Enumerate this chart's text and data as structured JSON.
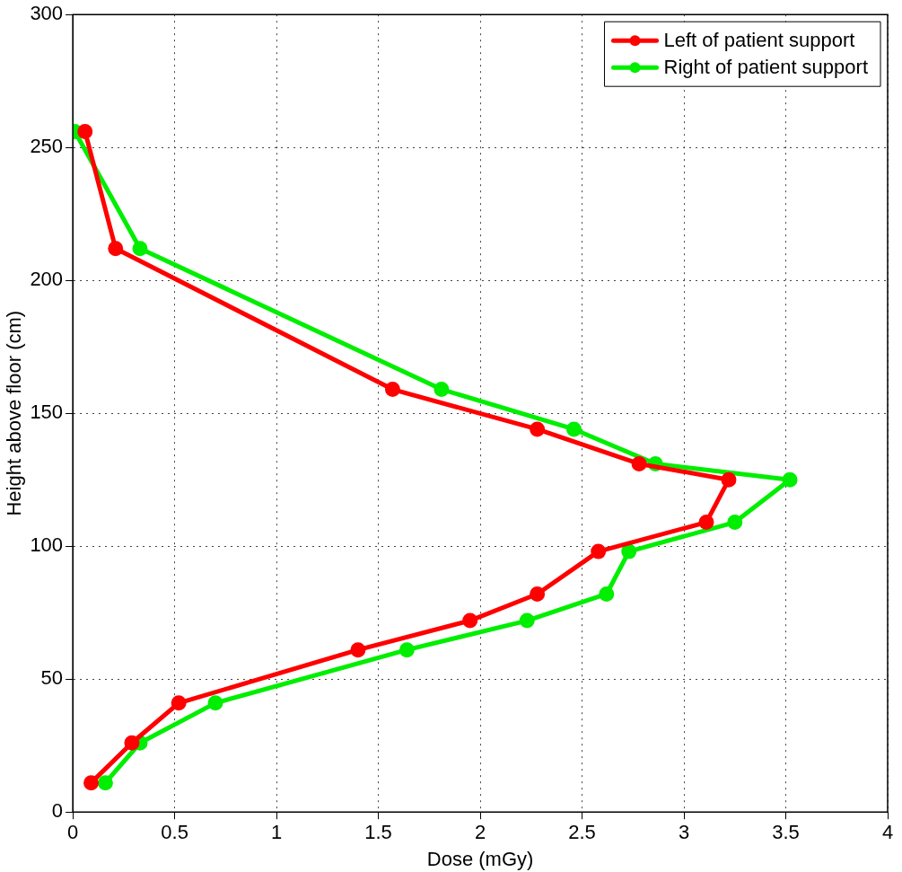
{
  "chart_data": {
    "type": "line",
    "xlabel": "Dose (mGy)",
    "ylabel": "Height above floor (cm)",
    "series": [
      {
        "name": "Left of patient support",
        "color": "#ff0000",
        "x": [
          0.06,
          0.21,
          1.57,
          2.28,
          2.78,
          3.22,
          3.11,
          2.58,
          2.28,
          1.95,
          1.4,
          0.52,
          0.29,
          0.09
        ],
        "values": [
          256,
          212,
          159,
          144,
          131,
          125,
          109,
          98,
          82,
          72,
          61,
          41,
          26,
          11
        ]
      },
      {
        "name": "Right of patient support",
        "color": "#00ee00",
        "x": [
          0.01,
          0.33,
          1.81,
          2.46,
          2.86,
          3.52,
          3.25,
          2.73,
          2.62,
          2.23,
          1.64,
          0.7,
          0.33,
          0.16
        ],
        "values": [
          256,
          212,
          159,
          144,
          131,
          125,
          109,
          98,
          82,
          72,
          61,
          41,
          26,
          11
        ]
      }
    ],
    "xlim": [
      0,
      4
    ],
    "xticks": [
      0,
      0.5,
      1,
      1.5,
      2,
      2.5,
      3,
      3.5,
      4
    ],
    "ylim": [
      0,
      300
    ],
    "yticks": [
      0,
      50,
      100,
      150,
      200,
      250,
      300
    ],
    "grid": true,
    "legend": "top right",
    "marker": "circle",
    "line_style": "solid"
  }
}
